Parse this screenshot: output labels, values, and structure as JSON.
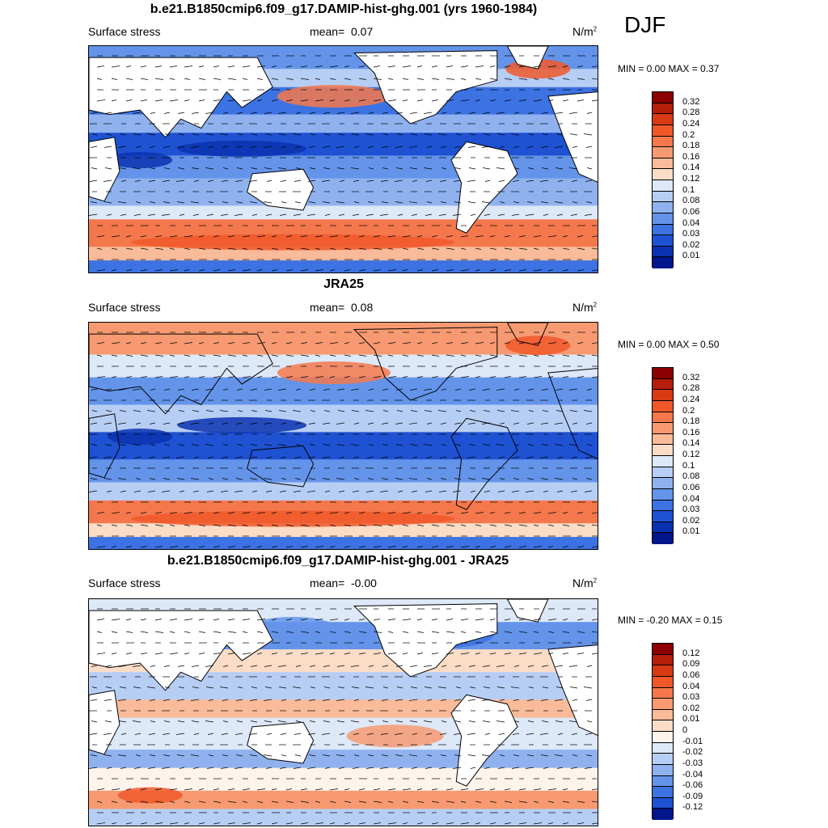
{
  "season": "DJF",
  "panels": [
    {
      "title": "b.e21.B1850cmip6.f09_g17.DAMIP-hist-ghg.001 (yrs 1960-1984)",
      "left_label": "Surface stress",
      "mean_label": "mean=",
      "mean_value": "0.07",
      "units": "N/m",
      "units_sup": "2",
      "minmax": "MIN =   0.00 MAX =   0.37",
      "colorbar_labels": [
        "0.32",
        "0.28",
        "0.24",
        "0.2",
        "0.18",
        "0.16",
        "0.14",
        "0.12",
        "0.1",
        "0.08",
        "0.06",
        "0.04",
        "0.03",
        "0.02",
        "0.01"
      ]
    },
    {
      "title": "JRA25",
      "left_label": "Surface stress",
      "mean_label": "mean=",
      "mean_value": "0.08",
      "units": "N/m",
      "units_sup": "2",
      "minmax": "MIN =   0.00 MAX =   0.50",
      "colorbar_labels": [
        "0.32",
        "0.28",
        "0.24",
        "0.2",
        "0.18",
        "0.16",
        "0.14",
        "0.12",
        "0.1",
        "0.08",
        "0.06",
        "0.04",
        "0.03",
        "0.02",
        "0.01"
      ]
    },
    {
      "title": "b.e21.B1850cmip6.f09_g17.DAMIP-hist-ghg.001 - JRA25",
      "left_label": "Surface stress",
      "mean_label": "mean=",
      "mean_value": "-0.00",
      "units": "N/m",
      "units_sup": "2",
      "minmax": "MIN =  -0.20 MAX =   0.15",
      "colorbar_labels": [
        "0.12",
        "0.09",
        "0.06",
        "0.04",
        "0.03",
        "0.02",
        "0.01",
        "0",
        "-0.01",
        "-0.02",
        "-0.03",
        "-0.04",
        "-0.06",
        "-0.09",
        "-0.12"
      ]
    }
  ],
  "colors": {
    "abs_scale": [
      "#8b0000",
      "#b41e0a",
      "#d83a14",
      "#f0582a",
      "#f4784c",
      "#f79a72",
      "#f9bb9a",
      "#fbdcc6",
      "#dde8f8",
      "#b7cef4",
      "#8fb2ef",
      "#6494ea",
      "#3c72e2",
      "#1e52d2",
      "#0a32b0",
      "#00168a"
    ],
    "diff_scale": [
      "#8b0000",
      "#b41e0a",
      "#d83a14",
      "#f0582a",
      "#f4784c",
      "#f79a72",
      "#f9bb9a",
      "#fbdcc6",
      "#fff4ec",
      "#dde8f8",
      "#b7cef4",
      "#8fb2ef",
      "#6494ea",
      "#3c72e2",
      "#1e52d2",
      "#00168a"
    ],
    "land": "#ffffff",
    "coast": "#000000"
  }
}
